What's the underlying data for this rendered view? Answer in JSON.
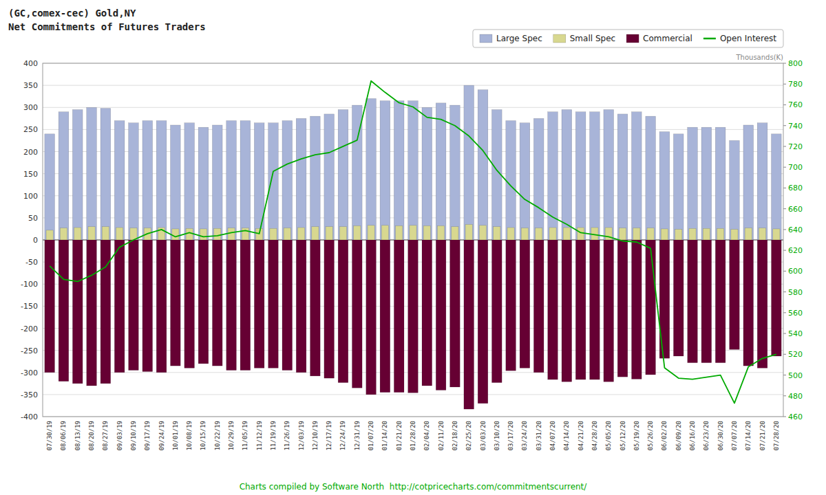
{
  "chart_data": {
    "type": "bar",
    "title": "(GC,comex-cec) Gold,NY",
    "subtitle": "Net Commitments of Futures Traders",
    "annotations": [
      "Thousands(K)",
      "Charts compiled by Software North  http://cotpricecharts.com/commitmentscurrent/"
    ],
    "categories": [
      "07/30/19",
      "08/06/19",
      "08/13/19",
      "08/20/19",
      "08/27/19",
      "09/03/19",
      "09/10/19",
      "09/17/19",
      "09/24/19",
      "10/01/19",
      "10/08/19",
      "10/15/19",
      "10/22/19",
      "10/29/19",
      "11/05/19",
      "11/12/19",
      "11/19/19",
      "11/26/19",
      "12/03/19",
      "12/10/19",
      "12/17/19",
      "12/24/19",
      "12/31/19",
      "01/07/20",
      "01/14/20",
      "01/21/20",
      "01/28/20",
      "02/04/20",
      "02/11/20",
      "02/18/20",
      "02/25/20",
      "03/03/20",
      "03/10/20",
      "03/17/20",
      "03/24/20",
      "03/31/20",
      "04/07/20",
      "04/14/20",
      "04/21/20",
      "04/28/20",
      "05/05/20",
      "05/12/20",
      "05/19/20",
      "05/26/20",
      "06/02/20",
      "06/09/20",
      "06/16/20",
      "06/23/20",
      "06/30/20",
      "07/07/20",
      "07/14/20",
      "07/21/20",
      "07/28/20"
    ],
    "series": [
      {
        "name": "Large Spec",
        "type": "bar",
        "color": "#a8b4d8",
        "values": [
          240,
          290,
          295,
          300,
          298,
          270,
          265,
          270,
          270,
          260,
          265,
          255,
          260,
          270,
          270,
          265,
          265,
          270,
          275,
          280,
          285,
          295,
          305,
          320,
          315,
          315,
          315,
          300,
          310,
          305,
          350,
          340,
          295,
          270,
          265,
          275,
          290,
          295,
          290,
          290,
          295,
          285,
          290,
          280,
          245,
          240,
          255,
          255,
          255,
          225,
          260,
          265,
          240
        ]
      },
      {
        "name": "Small Spec",
        "type": "bar",
        "color": "#d8d890",
        "values": [
          22,
          27,
          28,
          30,
          30,
          28,
          27,
          27,
          28,
          25,
          26,
          25,
          26,
          27,
          27,
          26,
          26,
          27,
          28,
          30,
          30,
          30,
          32,
          33,
          33,
          32,
          33,
          32,
          32,
          30,
          35,
          33,
          30,
          28,
          27,
          27,
          28,
          28,
          28,
          28,
          28,
          27,
          27,
          27,
          25,
          24,
          26,
          26,
          26,
          24,
          27,
          27,
          25
        ]
      },
      {
        "name": "Commercial",
        "type": "bar",
        "color": "#660033",
        "values": [
          -300,
          -320,
          -325,
          -330,
          -325,
          -300,
          -295,
          -298,
          -300,
          -285,
          -290,
          -280,
          -285,
          -295,
          -295,
          -290,
          -290,
          -295,
          -300,
          -308,
          -313,
          -323,
          -335,
          -350,
          -345,
          -345,
          -346,
          -330,
          -340,
          -333,
          -383,
          -370,
          -323,
          -296,
          -290,
          -300,
          -316,
          -321,
          -316,
          -316,
          -321,
          -310,
          -315,
          -305,
          -268,
          -263,
          -278,
          -278,
          -278,
          -248,
          -285,
          -290,
          -263
        ]
      },
      {
        "name": "Open Interest",
        "type": "line",
        "axis": "y2",
        "color": "#00aa00",
        "values": [
          605,
          592,
          590,
          596,
          604,
          623,
          630,
          636,
          640,
          633,
          637,
          633,
          634,
          637,
          639,
          636,
          696,
          703,
          708,
          712,
          714,
          720,
          726,
          783,
          772,
          762,
          758,
          748,
          746,
          740,
          730,
          716,
          697,
          682,
          669,
          661,
          652,
          645,
          637,
          635,
          633,
          629,
          628,
          622,
          507,
          497,
          496,
          498,
          500,
          473,
          508,
          516,
          520
        ]
      }
    ],
    "ylim": [
      -400,
      400
    ],
    "yticks": [
      -400,
      -350,
      -300,
      -250,
      -200,
      -150,
      -100,
      -50,
      0,
      50,
      100,
      150,
      200,
      250,
      300,
      350,
      400
    ],
    "y2lim": [
      460,
      800
    ],
    "y2ticks": [
      460,
      480,
      500,
      520,
      540,
      560,
      580,
      600,
      620,
      640,
      660,
      680,
      700,
      720,
      740,
      760,
      780,
      800
    ],
    "grid": true,
    "legend": "upper right"
  }
}
